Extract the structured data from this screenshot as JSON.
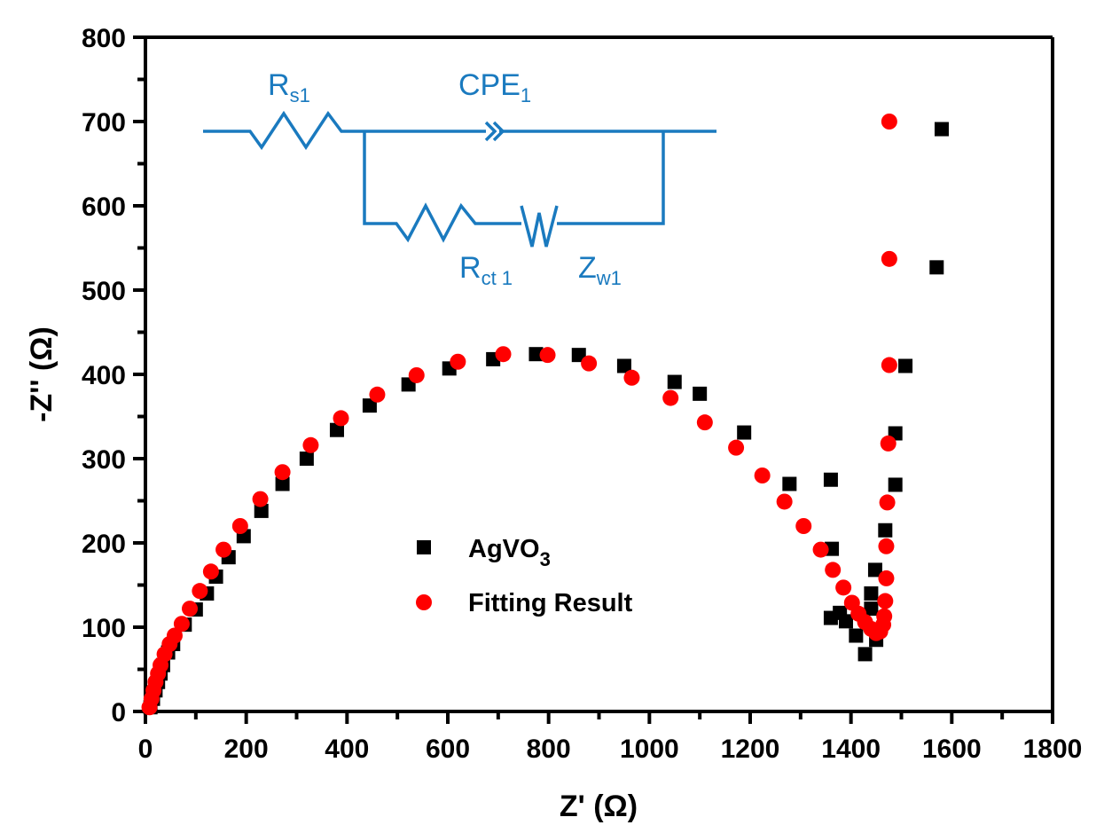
{
  "chart_data": {
    "type": "scatter",
    "title": "",
    "xlabel": "Z' (Ω)",
    "ylabel": "-Z'' (Ω)",
    "xlim": [
      0,
      1800
    ],
    "ylim": [
      0,
      800
    ],
    "xticks": [
      0,
      200,
      400,
      600,
      800,
      1000,
      1200,
      1400,
      1600,
      1800
    ],
    "yticks": [
      0,
      100,
      200,
      300,
      400,
      500,
      600,
      700,
      800
    ],
    "grid": false,
    "legend_position": "center-left-bottom",
    "series": [
      {
        "name": "AgVO3",
        "label_main": "AgVO",
        "label_sub": "3",
        "marker": "square",
        "color": "#000000",
        "points": [
          [
            10,
            5
          ],
          [
            15,
            15
          ],
          [
            20,
            25
          ],
          [
            25,
            35
          ],
          [
            30,
            45
          ],
          [
            35,
            55
          ],
          [
            45,
            70
          ],
          [
            55,
            80
          ],
          [
            78,
            103
          ],
          [
            100,
            121
          ],
          [
            122,
            140
          ],
          [
            140,
            160
          ],
          [
            165,
            183
          ],
          [
            195,
            208
          ],
          [
            230,
            238
          ],
          [
            272,
            270
          ],
          [
            320,
            300
          ],
          [
            380,
            334
          ],
          [
            445,
            363
          ],
          [
            522,
            388
          ],
          [
            603,
            407
          ],
          [
            690,
            418
          ],
          [
            775,
            424
          ],
          [
            860,
            423
          ],
          [
            950,
            410
          ],
          [
            1050,
            391
          ],
          [
            1100,
            377
          ],
          [
            1188,
            331
          ],
          [
            1278,
            270
          ],
          [
            1360,
            275
          ],
          [
            1362,
            193
          ],
          [
            1360,
            111
          ],
          [
            1378,
            117
          ],
          [
            1390,
            107
          ],
          [
            1410,
            90
          ],
          [
            1428,
            68
          ],
          [
            1440,
            122
          ],
          [
            1440,
            140
          ],
          [
            1450,
            85
          ],
          [
            1448,
            168
          ],
          [
            1468,
            215
          ],
          [
            1488,
            269
          ],
          [
            1488,
            330
          ],
          [
            1508,
            410
          ],
          [
            1570,
            527
          ],
          [
            1580,
            691
          ]
        ]
      },
      {
        "name": "Fitting Result",
        "marker": "circle",
        "color": "#ff0000",
        "points": [
          [
            8,
            5
          ],
          [
            12,
            15
          ],
          [
            16,
            25
          ],
          [
            20,
            35
          ],
          [
            25,
            45
          ],
          [
            30,
            55
          ],
          [
            38,
            68
          ],
          [
            48,
            80
          ],
          [
            58,
            90
          ],
          [
            72,
            104
          ],
          [
            88,
            122
          ],
          [
            108,
            143
          ],
          [
            130,
            166
          ],
          [
            155,
            192
          ],
          [
            188,
            220
          ],
          [
            228,
            252
          ],
          [
            272,
            284
          ],
          [
            328,
            316
          ],
          [
            388,
            348
          ],
          [
            460,
            376
          ],
          [
            538,
            399
          ],
          [
            620,
            415
          ],
          [
            710,
            424
          ],
          [
            798,
            423
          ],
          [
            880,
            413
          ],
          [
            965,
            396
          ],
          [
            1042,
            372
          ],
          [
            1110,
            343
          ],
          [
            1172,
            313
          ],
          [
            1224,
            280
          ],
          [
            1268,
            249
          ],
          [
            1306,
            220
          ],
          [
            1340,
            192
          ],
          [
            1364,
            168
          ],
          [
            1385,
            147
          ],
          [
            1402,
            129
          ],
          [
            1415,
            116
          ],
          [
            1428,
            106
          ],
          [
            1440,
            98
          ],
          [
            1450,
            93
          ],
          [
            1458,
            95
          ],
          [
            1464,
            103
          ],
          [
            1466,
            113
          ],
          [
            1468,
            131
          ],
          [
            1470,
            158
          ],
          [
            1470,
            196
          ],
          [
            1472,
            248
          ],
          [
            1474,
            318
          ],
          [
            1476,
            411
          ],
          [
            1476,
            537
          ],
          [
            1476,
            700
          ]
        ]
      }
    ],
    "inset_circuit": {
      "color": "#1a7abf",
      "components": [
        {
          "name": "Rs1",
          "label_main": "R",
          "label_sub": "s1",
          "type": "resistor"
        },
        {
          "name": "CPE1",
          "label_main": "CPE",
          "label_sub": "1",
          "type": "constant-phase-element"
        },
        {
          "name": "Rct1",
          "label_main": "R",
          "label_sub": "ct 1",
          "type": "resistor"
        },
        {
          "name": "Zw1",
          "label_main": "Z",
          "label_sub": "w1",
          "type": "warburg"
        }
      ]
    }
  }
}
